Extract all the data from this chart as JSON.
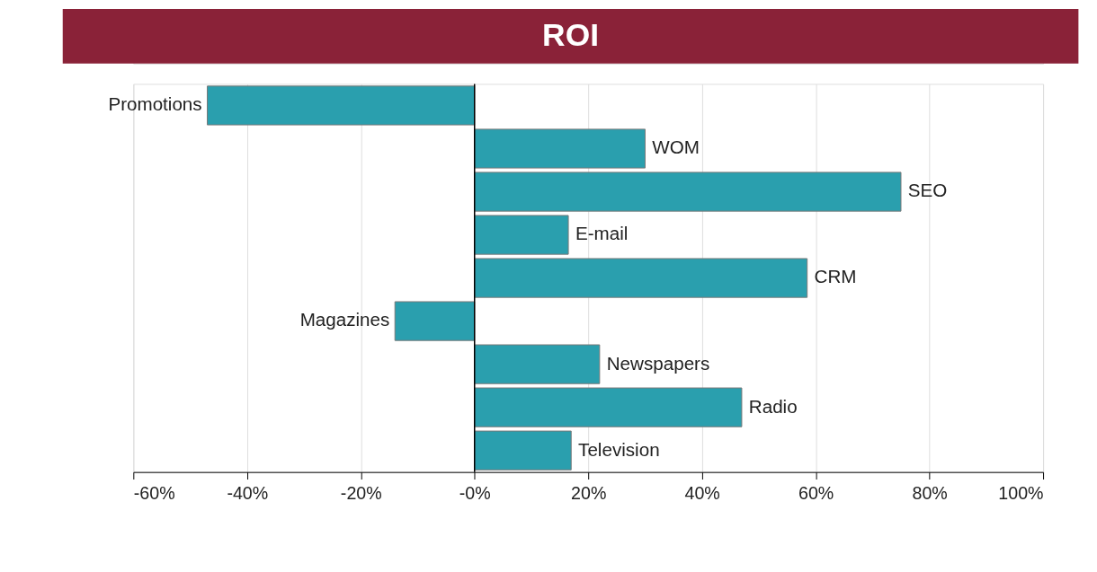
{
  "chart_data": {
    "type": "bar",
    "orientation": "horizontal",
    "title": "ROI",
    "categories": [
      "Promotions",
      "WOM",
      "SEO",
      "E-mail",
      "CRM",
      "Magazines",
      "Newspapers",
      "Radio",
      "Television"
    ],
    "values": [
      -47,
      30,
      75,
      16.5,
      58.5,
      -14,
      22,
      47,
      17
    ],
    "color": "#2a9fae",
    "xlim": [
      -60,
      100
    ],
    "xticks": [
      {
        "value": -60,
        "label": "-60%"
      },
      {
        "value": -40,
        "label": "-40%"
      },
      {
        "value": -20,
        "label": "-20%"
      },
      {
        "value": 0,
        "label": "-0%"
      },
      {
        "value": 20,
        "label": "20%"
      },
      {
        "value": 40,
        "label": "40%"
      },
      {
        "value": 60,
        "label": "60%"
      },
      {
        "value": 80,
        "label": "80%"
      },
      {
        "value": 100,
        "label": "100%"
      }
    ],
    "ref_lines": [
      {
        "axis": "x",
        "value": 0,
        "color": "#000000"
      }
    ],
    "grid": "x",
    "tick_labels": "x"
  }
}
